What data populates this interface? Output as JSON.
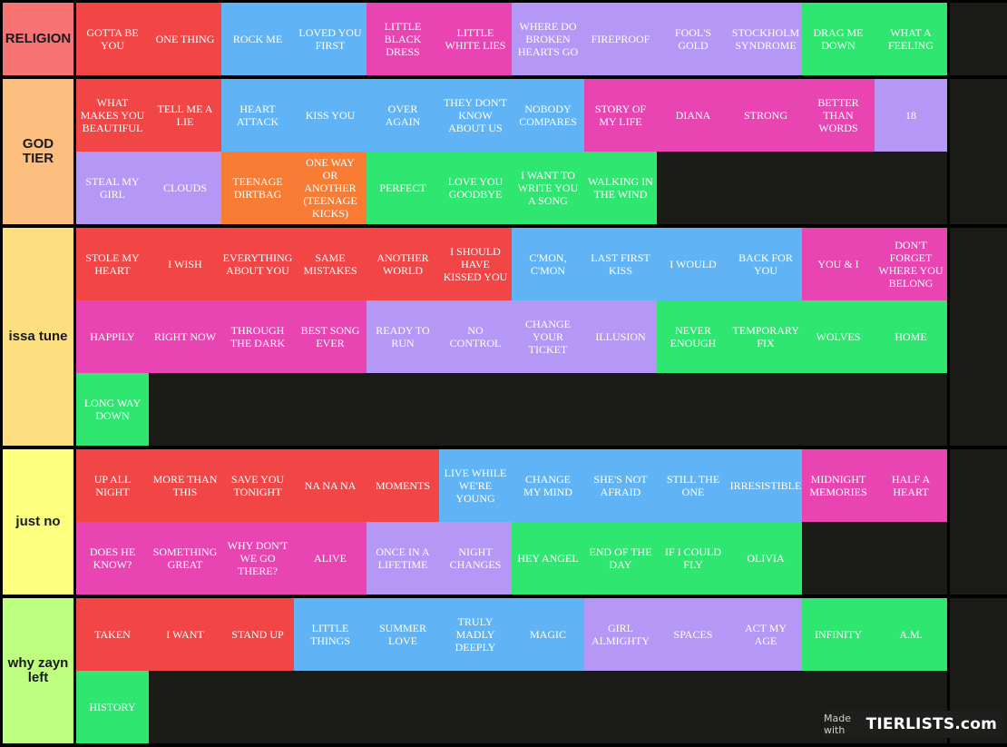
{
  "colors": {
    "red": "#f24545",
    "blue": "#60b4f5",
    "pink": "#e845b2",
    "purple": "#b597f5",
    "green": "#2fe670",
    "orange": "#f97c34",
    "background": "#1a1a17"
  },
  "tiers": [
    {
      "label": "RELIGION",
      "color": "#f87474",
      "items": [
        {
          "title": "GOTTA BE YOU",
          "color": "red"
        },
        {
          "title": "ONE THING",
          "color": "red"
        },
        {
          "title": "ROCK ME",
          "color": "blue"
        },
        {
          "title": "LOVED YOU FIRST",
          "color": "blue"
        },
        {
          "title": "LITTLE BLACK DRESS",
          "color": "pink"
        },
        {
          "title": "LITTLE WHITE LIES",
          "color": "pink"
        },
        {
          "title": "WHERE DO BROKEN HEARTS GO",
          "color": "purple"
        },
        {
          "title": "FIREPROOF",
          "color": "purple"
        },
        {
          "title": "FOOL'S GOLD",
          "color": "purple"
        },
        {
          "title": "STOCKHOLM SYNDROME",
          "color": "purple"
        },
        {
          "title": "DRAG ME DOWN",
          "color": "green"
        },
        {
          "title": "WHAT A FEELING",
          "color": "green"
        }
      ]
    },
    {
      "label": "GOD TIER",
      "color": "#fdbf7f",
      "items": [
        {
          "title": "WHAT MAKES YOU BEAUTIFUL",
          "color": "red"
        },
        {
          "title": "TELL ME A LIE",
          "color": "red"
        },
        {
          "title": "HEART ATTACK",
          "color": "blue"
        },
        {
          "title": "KISS YOU",
          "color": "blue"
        },
        {
          "title": "OVER AGAIN",
          "color": "blue"
        },
        {
          "title": "THEY DON'T KNOW ABOUT US",
          "color": "blue"
        },
        {
          "title": "NOBODY COMPARES",
          "color": "blue"
        },
        {
          "title": "STORY OF MY LIFE",
          "color": "pink"
        },
        {
          "title": "DIANA",
          "color": "pink"
        },
        {
          "title": "STRONG",
          "color": "pink"
        },
        {
          "title": "BETTER THAN WORDS",
          "color": "pink"
        },
        {
          "title": "18",
          "color": "purple"
        },
        {
          "title": "STEAL MY GIRL",
          "color": "purple"
        },
        {
          "title": "CLOUDS",
          "color": "purple"
        },
        {
          "title": "TEENAGE DIRTBAG",
          "color": "orange"
        },
        {
          "title": "ONE WAY OR ANOTHER (TEENAGE KICKS)",
          "color": "orange"
        },
        {
          "title": "PERFECT",
          "color": "green"
        },
        {
          "title": "LOVE YOU GOODBYE",
          "color": "green"
        },
        {
          "title": "I WANT TO WRITE YOU A SONG",
          "color": "green"
        },
        {
          "title": "WALKING IN THE WIND",
          "color": "green"
        }
      ]
    },
    {
      "label": "issa tune",
      "color": "#fddf7f",
      "items": [
        {
          "title": "STOLE MY HEART",
          "color": "red"
        },
        {
          "title": "I WISH",
          "color": "red"
        },
        {
          "title": "EVERYTHING ABOUT YOU",
          "color": "red"
        },
        {
          "title": "SAME MISTAKES",
          "color": "red"
        },
        {
          "title": "ANOTHER WORLD",
          "color": "red"
        },
        {
          "title": "I SHOULD HAVE KISSED YOU",
          "color": "red"
        },
        {
          "title": "C'MON, C'MON",
          "color": "blue"
        },
        {
          "title": "LAST FIRST KISS",
          "color": "blue"
        },
        {
          "title": "I WOULD",
          "color": "blue"
        },
        {
          "title": "BACK FOR YOU",
          "color": "blue"
        },
        {
          "title": "YOU & I",
          "color": "pink"
        },
        {
          "title": "DON'T FORGET WHERE YOU BELONG",
          "color": "pink"
        },
        {
          "title": "HAPPILY",
          "color": "pink"
        },
        {
          "title": "RIGHT NOW",
          "color": "pink"
        },
        {
          "title": "THROUGH THE DARK",
          "color": "pink"
        },
        {
          "title": "BEST SONG EVER",
          "color": "pink"
        },
        {
          "title": "READY TO RUN",
          "color": "purple"
        },
        {
          "title": "NO CONTROL",
          "color": "purple"
        },
        {
          "title": "CHANGE YOUR TICKET",
          "color": "purple"
        },
        {
          "title": "ILLUSION",
          "color": "purple"
        },
        {
          "title": "NEVER ENOUGH",
          "color": "green"
        },
        {
          "title": "TEMPORARY FIX",
          "color": "green"
        },
        {
          "title": "WOLVES",
          "color": "green"
        },
        {
          "title": "HOME",
          "color": "green"
        },
        {
          "title": "LONG WAY DOWN",
          "color": "green"
        }
      ]
    },
    {
      "label": "just no",
      "color": "#fdff7f",
      "items": [
        {
          "title": "UP ALL NIGHT",
          "color": "red"
        },
        {
          "title": "MORE THAN THIS",
          "color": "red"
        },
        {
          "title": "SAVE YOU TONIGHT",
          "color": "red"
        },
        {
          "title": "NA NA NA",
          "color": "red"
        },
        {
          "title": "MOMENTS",
          "color": "red"
        },
        {
          "title": "LIVE WHILE WE'RE YOUNG",
          "color": "blue"
        },
        {
          "title": "CHANGE MY MIND",
          "color": "blue"
        },
        {
          "title": "SHE'S NOT AFRAID",
          "color": "blue"
        },
        {
          "title": "STILL THE ONE",
          "color": "blue"
        },
        {
          "title": "IRRESISTIBLE",
          "color": "blue"
        },
        {
          "title": "MIDNIGHT MEMORIES",
          "color": "pink"
        },
        {
          "title": "HALF A HEART",
          "color": "pink"
        },
        {
          "title": "DOES HE KNOW?",
          "color": "pink"
        },
        {
          "title": "SOMETHING GREAT",
          "color": "pink"
        },
        {
          "title": "WHY DON'T WE GO THERE?",
          "color": "pink"
        },
        {
          "title": "ALIVE",
          "color": "pink"
        },
        {
          "title": "ONCE IN A LIFETIME",
          "color": "purple"
        },
        {
          "title": "NIGHT CHANGES",
          "color": "purple"
        },
        {
          "title": "HEY ANGEL",
          "color": "green"
        },
        {
          "title": "END OF THE DAY",
          "color": "green"
        },
        {
          "title": "IF I COULD FLY",
          "color": "green"
        },
        {
          "title": "OLIVIA",
          "color": "green"
        }
      ]
    },
    {
      "label": "why zayn left",
      "color": "#bfff7f",
      "items": [
        {
          "title": "TAKEN",
          "color": "red"
        },
        {
          "title": "I WANT",
          "color": "red"
        },
        {
          "title": "STAND UP",
          "color": "red"
        },
        {
          "title": "LITTLE THINGS",
          "color": "blue"
        },
        {
          "title": "SUMMER LOVE",
          "color": "blue"
        },
        {
          "title": "TRULY MADLY DEEPLY",
          "color": "blue"
        },
        {
          "title": "MAGIC",
          "color": "blue"
        },
        {
          "title": "GIRL ALMIGHTY",
          "color": "purple"
        },
        {
          "title": "SPACES",
          "color": "purple"
        },
        {
          "title": "ACT MY AGE",
          "color": "purple"
        },
        {
          "title": "INFINITY",
          "color": "green"
        },
        {
          "title": "A.M.",
          "color": "green"
        },
        {
          "title": "HISTORY",
          "color": "green"
        }
      ]
    }
  ],
  "watermark": {
    "prefix": "Made with",
    "brand": "TIERLISTS.com"
  }
}
